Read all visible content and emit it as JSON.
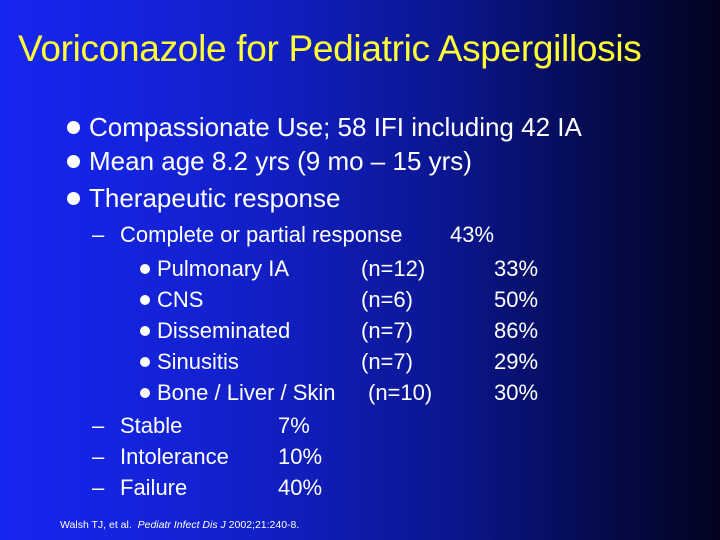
{
  "title": "Voriconazole for Pediatric Aspergillosis",
  "bullets": [
    "Compassionate Use; 58 IFI including 42 IA",
    "Mean age 8.2 yrs  (9 mo – 15 yrs)",
    "Therapeutic response"
  ],
  "response": {
    "dash": "–",
    "complete_label": "Complete or partial response",
    "complete_value": "43%",
    "sites": [
      {
        "name": "Pulmonary IA",
        "n": "(n=12)",
        "pct": "33%"
      },
      {
        "name": "CNS",
        "n": "(n=6)",
        "pct": "50%"
      },
      {
        "name": "Disseminated",
        "n": "(n=7)",
        "pct": "86%"
      },
      {
        "name": "Sinusitis",
        "n": "(n=7)",
        "pct": "29%"
      },
      {
        "name": "Bone / Liver / Skin",
        "n": "(n=10)",
        "pct": "30%"
      }
    ],
    "others": [
      {
        "label": "Stable",
        "value": "7%"
      },
      {
        "label": "Intolerance",
        "value": "10%"
      },
      {
        "label": "Failure",
        "value": "40%"
      }
    ]
  },
  "citation": {
    "authors": "Walsh TJ, et al.",
    "journal": "Pediatr Infect Dis J",
    "details": "2002;21:240-8."
  }
}
